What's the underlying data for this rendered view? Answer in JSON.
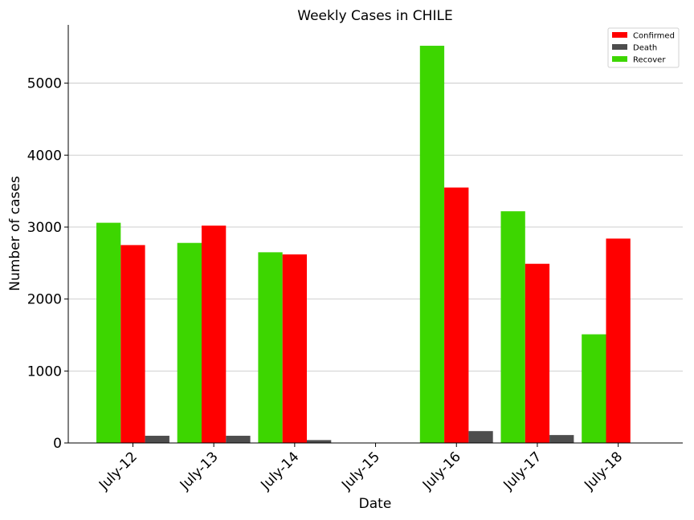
{
  "chart_data": {
    "type": "bar",
    "title": "Weekly Cases in CHILE",
    "xlabel": "Date",
    "ylabel": "Number of cases",
    "categories": [
      "July-12",
      "July-13",
      "July-14",
      "July-15",
      "July-16",
      "July-17",
      "July-18"
    ],
    "series": [
      {
        "name": "Recover",
        "color": "#3dd600",
        "values": [
          3060,
          2780,
          2650,
          0,
          5520,
          3220,
          1510
        ]
      },
      {
        "name": "Confirmed",
        "color": "#ff0000",
        "values": [
          2750,
          3020,
          2620,
          0,
          3550,
          2490,
          2840
        ]
      },
      {
        "name": "Death",
        "color": "#4d4d4d",
        "values": [
          100,
          100,
          40,
          0,
          165,
          110,
          0
        ]
      }
    ],
    "legend_order": [
      "Confirmed",
      "Death",
      "Recover"
    ],
    "legend_position": "top-right",
    "ylim": [
      0,
      5810
    ],
    "yticks": [
      0,
      1000,
      2000,
      3000,
      4000,
      5000
    ],
    "grid": "horizontal"
  }
}
